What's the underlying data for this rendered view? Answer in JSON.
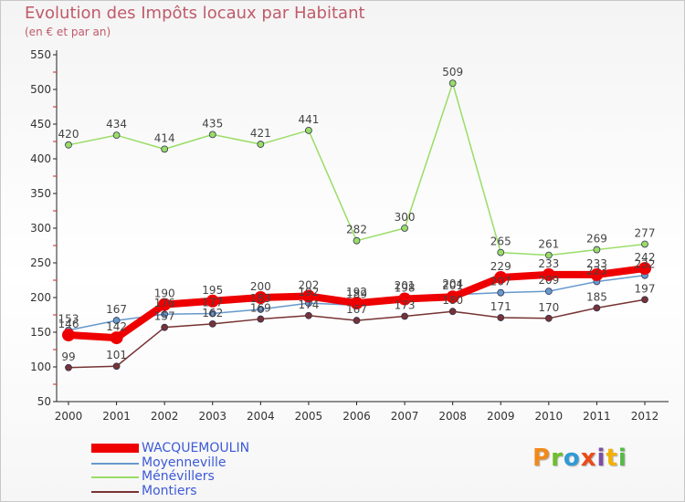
{
  "header": {
    "title": "Evolution des Impôts locaux par Habitant",
    "subtitle": "(en € et par an)"
  },
  "brand": {
    "letters": [
      "P",
      "r",
      "o",
      "x",
      "i",
      "t",
      "i"
    ],
    "colors": [
      "#f08a1c",
      "#6cbf2a",
      "#2f9bd6",
      "#e94d1b",
      "#7b4fa3",
      "#f2b100",
      "#56b947"
    ]
  },
  "chart_data": {
    "type": "line",
    "title": "Evolution des Impôts locaux par Habitant",
    "subtitle": "(en € et par an)",
    "xlabel": "",
    "ylabel": "",
    "categories": [
      "2000",
      "2001",
      "2002",
      "2003",
      "2004",
      "2005",
      "2006",
      "2007",
      "2008",
      "2009",
      "2010",
      "2011",
      "2012"
    ],
    "ylim": [
      50,
      550
    ],
    "yticks": [
      50,
      100,
      150,
      200,
      250,
      300,
      350,
      400,
      450,
      500,
      550
    ],
    "grid": false,
    "legend_position": "bottom-left",
    "series": [
      {
        "name": "WACQUEMOULIN",
        "color": "#ee0000",
        "values": [
          146,
          142,
          190,
          195,
          200,
          202,
          192,
          198,
          201,
          229,
          233,
          233,
          242
        ],
        "labels": [
          "146",
          "142",
          "190",
          "195",
          "200",
          "202",
          "192",
          "198",
          "201",
          "229",
          "233",
          "233",
          "242"
        ]
      },
      {
        "name": "Moyenneville",
        "color": "#6699cc",
        "values": [
          153,
          167,
          176,
          177,
          183,
          192,
          189,
          201,
          204,
          207,
          209,
          223,
          232
        ],
        "labels": [
          "153",
          "167",
          "176",
          "177",
          "183",
          "192",
          "189",
          "201",
          "204",
          "207",
          "209",
          "223",
          "232"
        ]
      },
      {
        "name": "Ménévillers",
        "color": "#99dd66",
        "values": [
          420,
          434,
          414,
          435,
          421,
          441,
          282,
          300,
          509,
          265,
          261,
          269,
          277
        ],
        "labels": [
          "420",
          "434",
          "414",
          "435",
          "421",
          "441",
          "282",
          "300",
          "509",
          "265",
          "261",
          "269",
          "277"
        ]
      },
      {
        "name": "Montiers",
        "color": "#773333",
        "values": [
          99,
          101,
          157,
          162,
          169,
          174,
          167,
          173,
          180,
          171,
          170,
          185,
          197
        ],
        "labels": [
          "99",
          "101",
          "157",
          "162",
          "169",
          "174",
          "167",
          "173",
          "180",
          "171",
          "170",
          "185",
          "197"
        ]
      }
    ]
  }
}
